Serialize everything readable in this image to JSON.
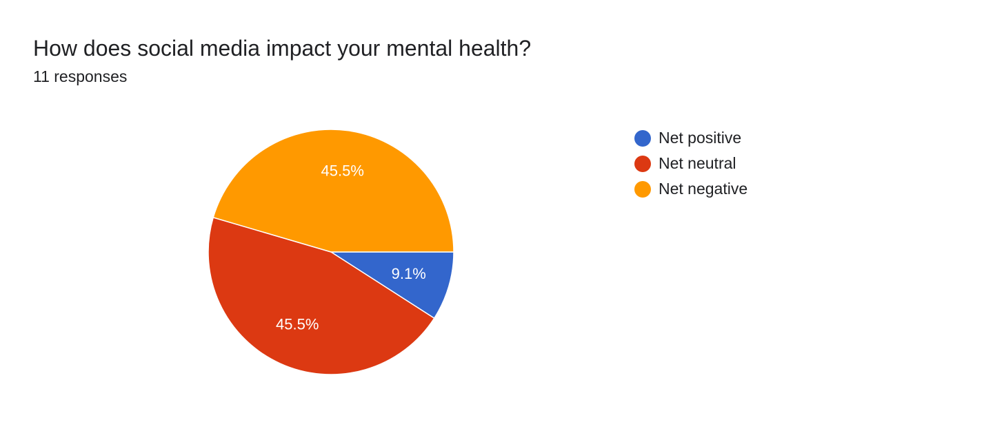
{
  "header": {
    "title": "How does social media impact your mental health?",
    "subtitle": "11 responses"
  },
  "chart_data": {
    "type": "pie",
    "title": "How does social media impact your mental health?",
    "subtitle": "11 responses",
    "start_angle_deg": 90,
    "direction": "clockwise",
    "legend_position": "right",
    "slices": [
      {
        "label": "Net positive",
        "value": 9.1,
        "display": "9.1%",
        "color": "#3366CC"
      },
      {
        "label": "Net neutral",
        "value": 45.5,
        "display": "45.5%",
        "color": "#DC3912"
      },
      {
        "label": "Net negative",
        "value": 45.5,
        "display": "45.5%",
        "color": "#FF9900"
      }
    ]
  }
}
